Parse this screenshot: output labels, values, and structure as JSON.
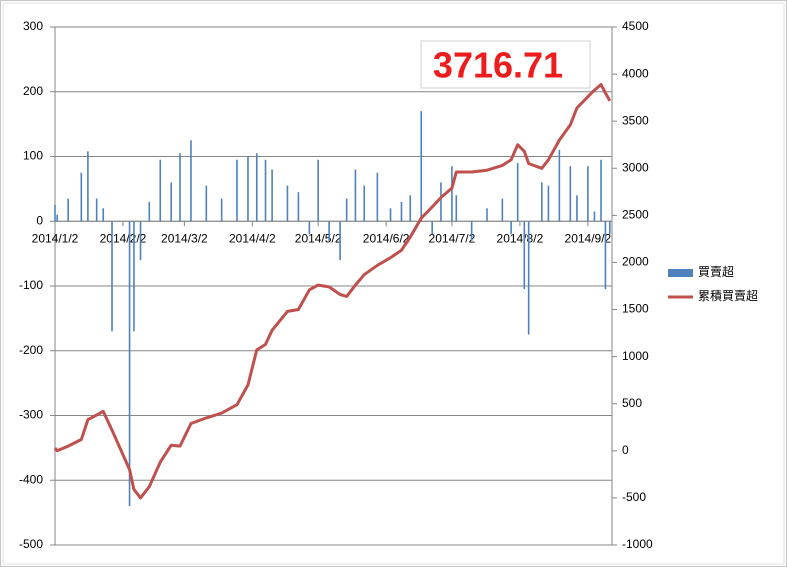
{
  "chart_data": {
    "type": "bar-line",
    "annotation": "3716.71",
    "x": [
      "2014/1/2",
      "2014/1/3",
      "2014/1/8",
      "2014/1/14",
      "2014/1/17",
      "2014/1/21",
      "2014/1/24",
      "2014/1/28",
      "2014/2/5",
      "2014/2/7",
      "2014/2/10",
      "2014/2/14",
      "2014/2/19",
      "2014/2/24",
      "2014/2/28",
      "2014/3/5",
      "2014/3/12",
      "2014/3/19",
      "2014/3/26",
      "2014/3/31",
      "2014/4/4",
      "2014/4/8",
      "2014/4/11",
      "2014/4/18",
      "2014/4/23",
      "2014/4/28",
      "2014/5/2",
      "2014/5/7",
      "2014/5/12",
      "2014/5/15",
      "2014/5/19",
      "2014/5/23",
      "2014/5/29",
      "2014/6/4",
      "2014/6/9",
      "2014/6/13",
      "2014/6/18",
      "2014/6/23",
      "2014/6/27",
      "2014/7/2",
      "2014/7/4",
      "2014/7/11",
      "2014/7/18",
      "2014/7/25",
      "2014/7/29",
      "2014/8/1",
      "2014/8/4",
      "2014/8/6",
      "2014/8/12",
      "2014/8/15",
      "2014/8/20",
      "2014/8/25",
      "2014/8/28",
      "2014/9/2",
      "2014/9/5",
      "2014/9/8",
      "2014/9/10",
      "2014/9/12"
    ],
    "series": [
      {
        "name": "買賣超",
        "type": "bar",
        "color": "#4f81bd",
        "axis": "y",
        "values": [
          25,
          10,
          35,
          75,
          108,
          35,
          20,
          -170,
          -440,
          -170,
          -60,
          30,
          95,
          60,
          105,
          125,
          55,
          35,
          95,
          100,
          105,
          95,
          80,
          55,
          45,
          -20,
          95,
          -30,
          -60,
          35,
          80,
          55,
          75,
          20,
          30,
          40,
          170,
          -20,
          60,
          85,
          40,
          -30,
          20,
          35,
          -20,
          90,
          -105,
          -175,
          60,
          55,
          110,
          85,
          40,
          85,
          15,
          95,
          -105,
          -20
        ]
      },
      {
        "name": "累積買賣超",
        "type": "line",
        "color": "#c0504d",
        "axis": "y2",
        "values": [
          30,
          0,
          50,
          120,
          330,
          380,
          420,
          220,
          -200,
          -410,
          -500,
          -380,
          -120,
          60,
          50,
          290,
          350,
          400,
          490,
          700,
          1070,
          1130,
          1280,
          1480,
          1500,
          1710,
          1760,
          1740,
          1660,
          1640,
          1760,
          1870,
          1970,
          2050,
          2130,
          2270,
          2470,
          2590,
          2690,
          2790,
          2960,
          2960,
          2980,
          3030,
          3090,
          3250,
          3180,
          3050,
          3000,
          3090,
          3300,
          3460,
          3640,
          3760,
          3830,
          3890,
          3800,
          3716.71
        ]
      }
    ],
    "xlim": [
      "2014/1/2",
      "2014/9/13"
    ],
    "xticks": [
      "2014/1/2",
      "2014/2/2",
      "2014/3/2",
      "2014/4/2",
      "2014/5/2",
      "2014/6/2",
      "2014/7/2",
      "2014/8/2",
      "2014/9/2"
    ],
    "ylim": [
      -500,
      300
    ],
    "yticks": [
      -500,
      -400,
      -300,
      -200,
      -100,
      0,
      100,
      200,
      300
    ],
    "y2lim": [
      -1000,
      4500
    ],
    "y2ticks": [
      -1000,
      -500,
      0,
      500,
      1000,
      1500,
      2000,
      2500,
      3000,
      3500,
      4000,
      4500
    ],
    "grid": true,
    "legend": "right"
  }
}
